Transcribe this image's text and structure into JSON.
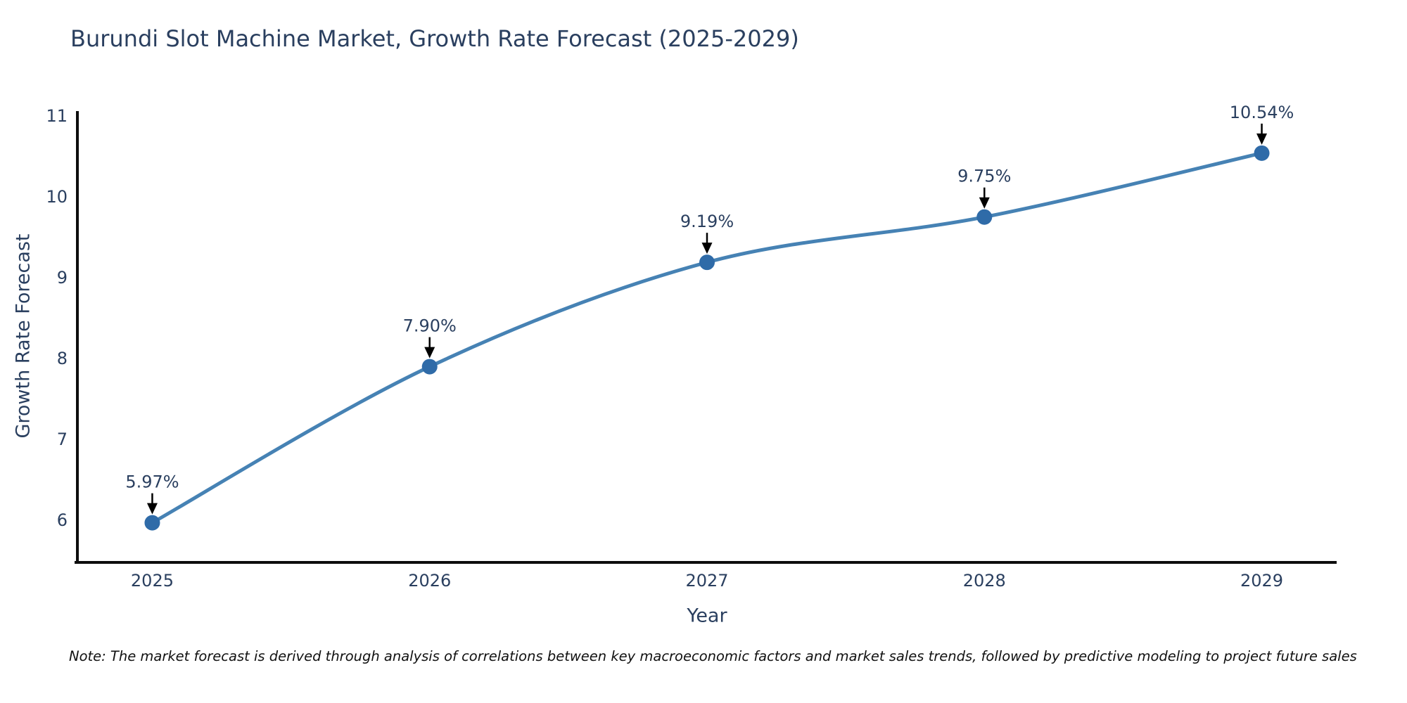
{
  "chart": {
    "title": "Burundi Slot Machine Market, Growth Rate Forecast (2025-2029)",
    "x_axis_title": "Year",
    "y_axis_title": "Growth Rate Forecast",
    "note": "Note: The market forecast is derived through analysis of correlations between key macroeconomic factors and market sales trends, followed by predictive modeling to project future sales"
  },
  "chart_data": {
    "type": "line",
    "title": "Burundi Slot Machine Market, Growth Rate Forecast (2025-2029)",
    "xlabel": "Year",
    "ylabel": "Growth Rate Forecast",
    "x": [
      2025,
      2026,
      2027,
      2028,
      2029
    ],
    "values": [
      5.97,
      7.9,
      9.19,
      9.75,
      10.54
    ],
    "point_labels": [
      "5.97%",
      "7.90%",
      "9.19%",
      "9.75%",
      "10.54%"
    ],
    "x_ticks": [
      "2025",
      "2026",
      "2027",
      "2028",
      "2029"
    ],
    "y_ticks": [
      6,
      7,
      8,
      9,
      10,
      11
    ],
    "xlim": [
      2024.73,
      2029.27
    ],
    "ylim": [
      5.48,
      11.06
    ],
    "grid": false,
    "legend": false,
    "line_shape": "spline",
    "colors": {
      "line": "#4682b4",
      "marker": "#2f6ba8",
      "axis_line": "#0d0d0d",
      "tick_text": "#2a3f5f",
      "annotation_text": "#2a3f5f",
      "annotation_arrow": "#000000"
    }
  }
}
